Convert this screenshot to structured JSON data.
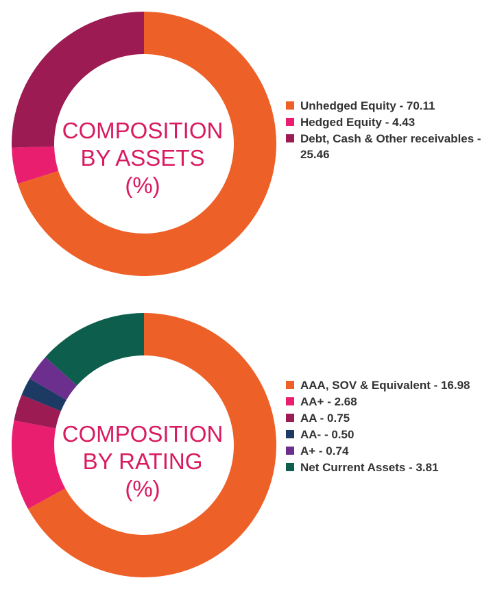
{
  "chart_data": [
    {
      "type": "pie",
      "title_lines": [
        "COMPOSITION",
        "BY ASSETS",
        "(%)"
      ],
      "slices": [
        {
          "label": "Unhedged Equity - 70.11",
          "value": 70.11,
          "color": "#ed6129"
        },
        {
          "label": "Hedged Equity - 4.43",
          "value": 4.43,
          "color": "#e91e6e"
        },
        {
          "label": "Debt, Cash & Other receivables - 25.46",
          "value": 25.46,
          "color": "#9b1b52"
        }
      ]
    },
    {
      "type": "pie",
      "title_lines": [
        "COMPOSITION",
        "BY RATING",
        "(%)"
      ],
      "slices": [
        {
          "label": "AAA, SOV & Equivalent - 16.98",
          "value": 67.0,
          "color": "#ed6129"
        },
        {
          "label": "AA+ - 2.68",
          "value": 11.0,
          "color": "#e91e6e"
        },
        {
          "label": "AA - 0.75",
          "value": 3.2,
          "color": "#9b1b52"
        },
        {
          "label": "AA- - 0.50",
          "value": 2.2,
          "color": "#1c3a63"
        },
        {
          "label": "A+ - 0.74",
          "value": 3.2,
          "color": "#6d2f8e"
        },
        {
          "label": "Net Current Assets - 3.81",
          "value": 13.4,
          "color": "#0e5e4e"
        }
      ]
    }
  ]
}
